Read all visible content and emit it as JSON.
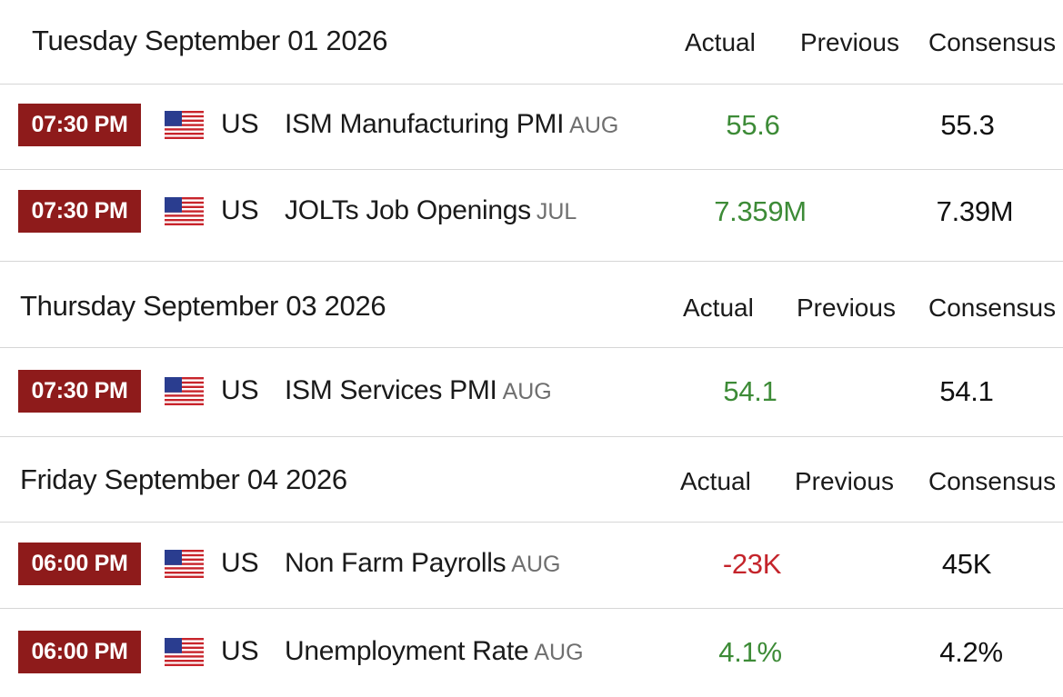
{
  "columns": {
    "actual": "Actual",
    "previous": "Previous",
    "consensus": "Consensus"
  },
  "colors": {
    "time_badge": "#8e1b1b",
    "positive": "#3d8b37",
    "negative": "#c4242b"
  },
  "days": [
    {
      "date": "Tuesday September 01 2026",
      "events": [
        {
          "time": "07:30 PM",
          "flag": "us-flag-icon",
          "country": "US",
          "name": "ISM Manufacturing PMI",
          "reference": "AUG",
          "actual": "55.6",
          "actual_trend": "up",
          "previous": "",
          "consensus": "55.3"
        },
        {
          "time": "07:30 PM",
          "flag": "us-flag-icon",
          "country": "US",
          "name": "JOLTs Job Openings",
          "reference": "JUL",
          "actual": "7.359M",
          "actual_trend": "up",
          "previous": "",
          "consensus": "7.39M"
        }
      ]
    },
    {
      "date": "Thursday September 03 2026",
      "events": [
        {
          "time": "07:30 PM",
          "flag": "us-flag-icon",
          "country": "US",
          "name": "ISM Services PMI",
          "reference": "AUG",
          "actual": "54.1",
          "actual_trend": "up",
          "previous": "",
          "consensus": "54.1"
        }
      ]
    },
    {
      "date": "Friday September 04 2026",
      "events": [
        {
          "time": "06:00 PM",
          "flag": "us-flag-icon",
          "country": "US",
          "name": "Non Farm Payrolls",
          "reference": "AUG",
          "actual": "-23K",
          "actual_trend": "down",
          "previous": "",
          "consensus": "45K"
        },
        {
          "time": "06:00 PM",
          "flag": "us-flag-icon",
          "country": "US",
          "name": "Unemployment Rate",
          "reference": "AUG",
          "actual": "4.1%",
          "actual_trend": "up",
          "previous": "",
          "consensus": "4.2%"
        }
      ]
    }
  ]
}
